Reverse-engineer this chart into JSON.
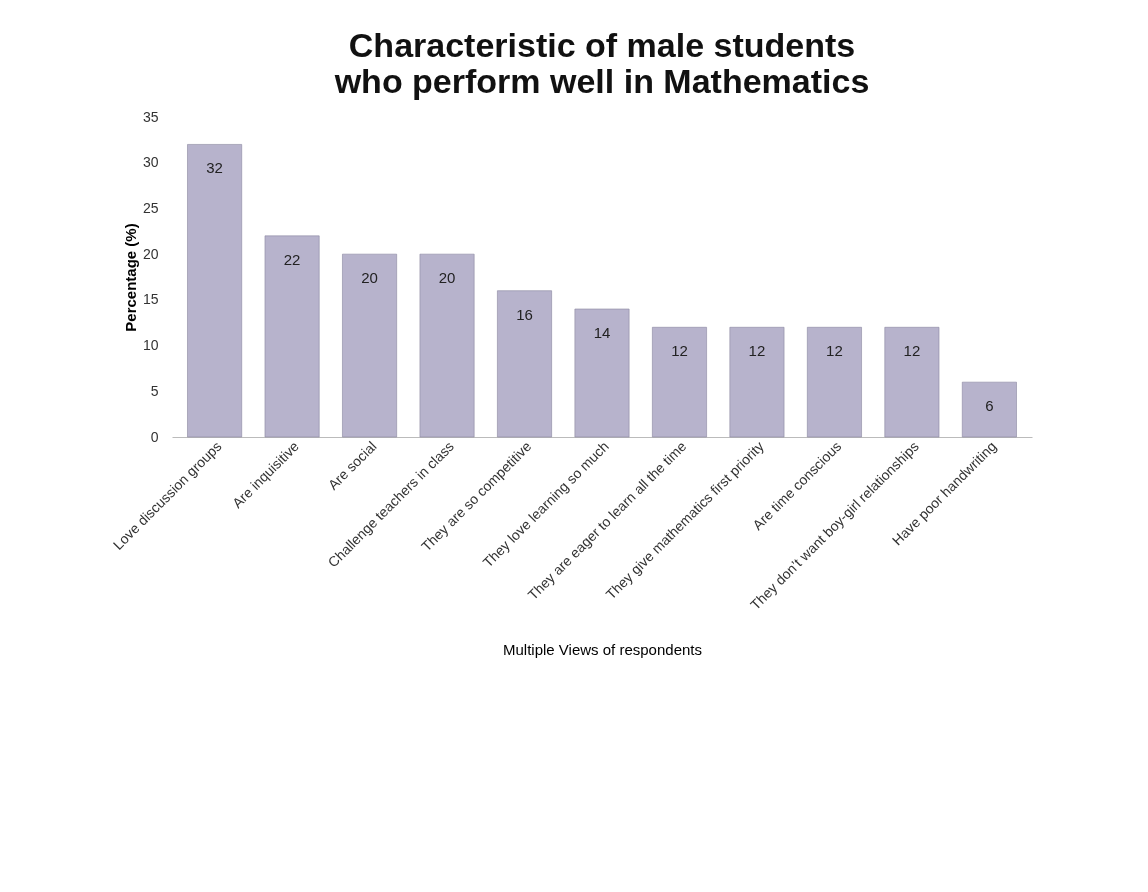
{
  "chart_data": {
    "type": "bar",
    "title": "Characteristic of male students who perform well in Mathematics",
    "xlabel": "Multiple Views  of respondents",
    "ylabel": "Percentage (%)",
    "categories": [
      "Love discussion groups",
      "Are inquisitive",
      "Are social",
      "Challenge teachers in class",
      "They are so competitive",
      "They love learning so much",
      "They are eager to learn  all the time",
      "They give mathematics  first priority",
      "Are time conscious",
      "They don’t want boy-girl relationships",
      "Have poor handwriting"
    ],
    "values": [
      32,
      22,
      20,
      20,
      16,
      14,
      12,
      12,
      12,
      12,
      6
    ],
    "color": "#b7b3cc",
    "ylim": [
      0,
      35
    ],
    "yticks": [
      0,
      5,
      10,
      15,
      20,
      25,
      30,
      35
    ],
    "grid": false,
    "data_labels": true
  }
}
